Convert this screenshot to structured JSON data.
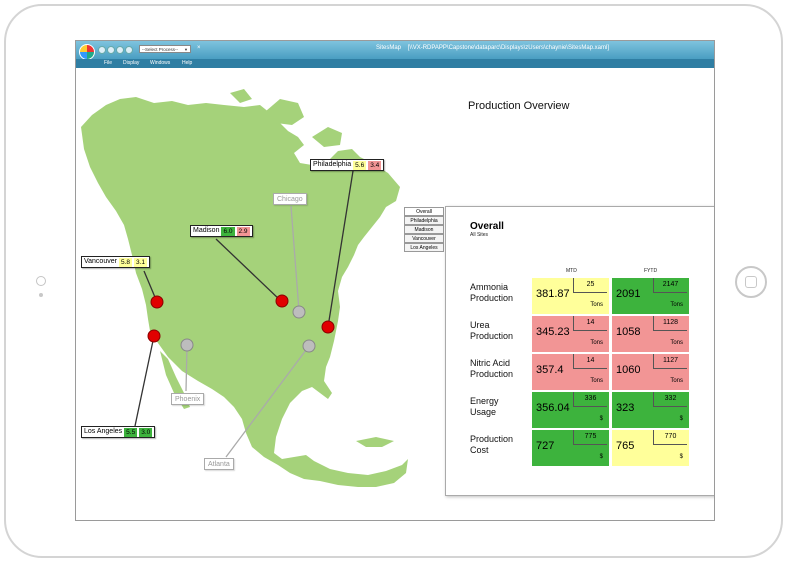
{
  "window": {
    "app_title": "SitesMap",
    "path": "[\\\\VX-RDPAPP\\Capstone\\dataparc\\Displays\\zUsers\\chaynie\\SitesMap.xaml]",
    "process_select": "--Select Process--",
    "close": "×"
  },
  "menu": [
    "File",
    "Display",
    "Windows",
    "Help"
  ],
  "title": "Production Overview",
  "sites": [
    {
      "name": "Philadelphia",
      "v1": "5.6",
      "c1": "#ffff9a",
      "v2": "3.4",
      "c2": "#f29595",
      "status": "red"
    },
    {
      "name": "Madison",
      "v1": "6.0",
      "c1": "#3db33d",
      "v2": "2.9",
      "c2": "#f29595",
      "status": "red"
    },
    {
      "name": "Vancouver",
      "v1": "5.8",
      "c1": "#ffff9a",
      "v2": "3.1",
      "c2": "#ffff9a",
      "status": "red"
    },
    {
      "name": "Los Angeles",
      "v1": "5.5",
      "c1": "#3db33d",
      "v2": "3.0",
      "c2": "#3db33d",
      "status": "red"
    },
    {
      "name": "Chicago",
      "status": "gray"
    },
    {
      "name": "Phoenix",
      "status": "gray"
    },
    {
      "name": "Atlanta",
      "status": "gray"
    }
  ],
  "tabs": [
    "Overall",
    "Philadelphia",
    "Madison",
    "Vancouver",
    "Los Angeles"
  ],
  "panel": {
    "title": "Overall",
    "subtitle": "All Sites",
    "col_mtd": "MTD",
    "col_fytd": "FYTD",
    "rows": [
      {
        "label1": "Ammonia",
        "label2": "Production",
        "mtd": "381.87",
        "mtd_target": "25",
        "mtd_color": "#ffff9a",
        "fytd": "2091",
        "fytd_target": "2147",
        "fytd_color": "#3db33d",
        "unit": "Tons"
      },
      {
        "label1": "Urea",
        "label2": "Production",
        "mtd": "345.23",
        "mtd_target": "14",
        "mtd_color": "#f29595",
        "fytd": "1058",
        "fytd_target": "1128",
        "fytd_color": "#f29595",
        "unit": "Tons"
      },
      {
        "label1": "Nitric Acid",
        "label2": "Production",
        "mtd": "357.4",
        "mtd_target": "14",
        "mtd_color": "#f29595",
        "fytd": "1060",
        "fytd_target": "1127",
        "fytd_color": "#f29595",
        "unit": "Tons"
      },
      {
        "label1": "Energy",
        "label2": "Usage",
        "mtd": "356.04",
        "mtd_target": "336",
        "mtd_color": "#3db33d",
        "fytd": "323",
        "fytd_target": "332",
        "fytd_color": "#3db33d",
        "unit": "$"
      },
      {
        "label1": "Production",
        "label2": "Cost",
        "mtd": "727",
        "mtd_target": "775",
        "mtd_color": "#3db33d",
        "fytd": "765",
        "fytd_target": "770",
        "fytd_color": "#ffff9a",
        "unit": "$"
      }
    ]
  },
  "colors": {
    "map_land": "#a5d27a",
    "marker_red": "#e10000",
    "marker_gray": "#bdbdbd",
    "titlebar": "#5aa9cc"
  }
}
